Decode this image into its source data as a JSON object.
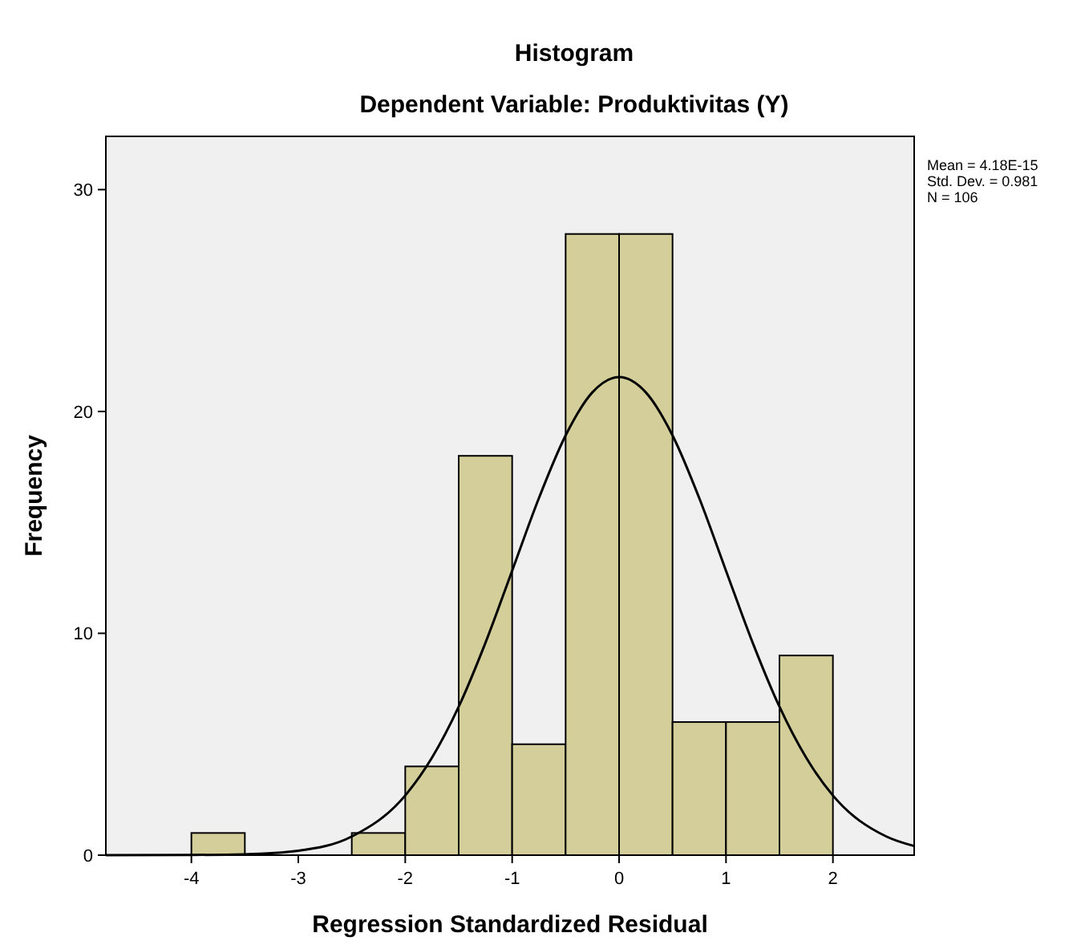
{
  "chart_data": {
    "type": "histogram",
    "title": "Histogram",
    "subtitle": "Dependent Variable: Produktivitas (Y)",
    "xlabel": "Regression Standardized Residual",
    "ylabel": "Frequency",
    "bins": [
      -4,
      -3.5,
      -3,
      -2.5,
      -2,
      -1.5,
      -1,
      -0.5,
      0,
      0.5,
      1,
      1.5,
      2
    ],
    "values": [
      1,
      0,
      0,
      1,
      4,
      18,
      5,
      28,
      28,
      6,
      6,
      9
    ],
    "color": "#d3ce9a",
    "series": [
      {
        "type": "line",
        "color": "#000000",
        "x": [
          -4.8,
          -4,
          -3.5,
          -3,
          -2.5,
          -2,
          -1.75,
          -1.5,
          -1.25,
          -1,
          -0.75,
          -0.5,
          -0.25,
          0,
          0.25,
          0.5,
          0.75,
          1,
          1.25,
          1.5,
          1.75,
          2,
          2.5,
          2.76
        ],
        "values": [
          0,
          0.01,
          0.04,
          0.2,
          0.84,
          2.69,
          4.39,
          6.69,
          9.57,
          12.82,
          16.09,
          18.92,
          20.86,
          21.55,
          20.86,
          18.92,
          16.09,
          12.82,
          9.57,
          6.69,
          4.39,
          2.69,
          0.84,
          0.41
        ]
      }
    ],
    "xlim": [
      -4.8,
      2.76
    ],
    "xticks": [
      -4,
      -3,
      -2,
      -1,
      0,
      1,
      2
    ],
    "ylim": [
      0,
      32.4
    ],
    "yticks": [
      0,
      10,
      20,
      30
    ],
    "grid": false,
    "annotations": [
      "Mean = 4.18E-15",
      "Std. Dev. = 0.981",
      "N = 106"
    ]
  }
}
